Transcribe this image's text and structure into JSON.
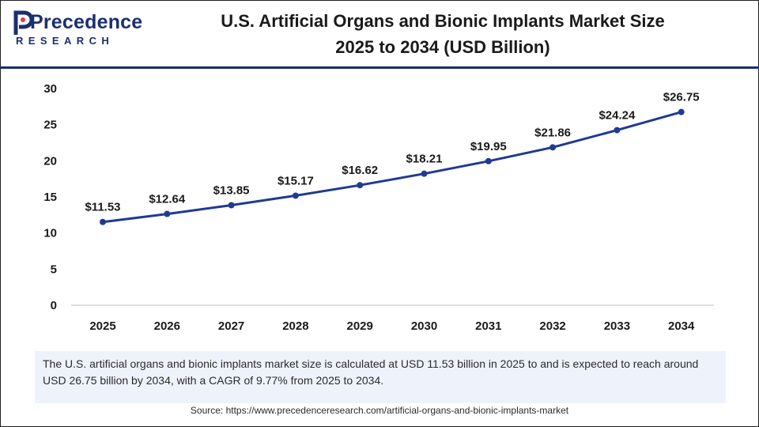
{
  "brand": {
    "name": "Precedence",
    "sub": "RESEARCH",
    "primary_color": "#1b2f6e",
    "accent_color": "#e23b3b"
  },
  "header": {
    "title_line1": "U.S. Artificial Organs and Bionic Implants Market Size",
    "title_line2": "2025 to 2034 (USD Billion)"
  },
  "chart_data": {
    "type": "line",
    "title": "U.S. Artificial Organs and Bionic Implants Market Size 2025 to 2034 (USD Billion)",
    "xlabel": "",
    "ylabel": "",
    "categories": [
      "2025",
      "2026",
      "2027",
      "2028",
      "2029",
      "2030",
      "2031",
      "2032",
      "2033",
      "2034"
    ],
    "values": [
      11.53,
      12.64,
      13.85,
      15.17,
      16.62,
      18.21,
      19.95,
      21.86,
      24.24,
      26.75
    ],
    "data_labels": [
      "$11.53",
      "$12.64",
      "$13.85",
      "$15.17",
      "$16.62",
      "$18.21",
      "$19.95",
      "$21.86",
      "$24.24",
      "$26.75"
    ],
    "ylim": [
      0,
      30
    ],
    "yticks": [
      "0",
      "5",
      "10",
      "15",
      "20",
      "25",
      "30"
    ],
    "ytick_values": [
      0,
      5,
      10,
      15,
      20,
      25,
      30
    ],
    "grid": false,
    "line_color": "#1f3a93"
  },
  "note": {
    "text": "The U.S. artificial organs and bionic implants market size is calculated at USD 11.53 billion in 2025 to and is expected to reach around USD 26.75 billion by 2034, with a CAGR of 9.77% from 2025 to 2034."
  },
  "source": {
    "text": "Source: https://www.precedenceresearch.com/artificial-organs-and-bionic-implants-market"
  }
}
